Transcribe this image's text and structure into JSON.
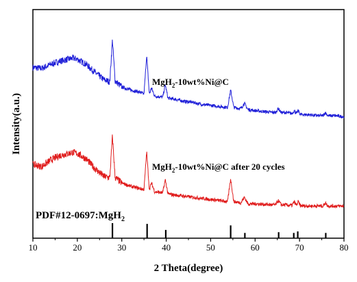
{
  "chart_data": {
    "type": "line",
    "title": "",
    "xlabel": "2 Theta(degree)",
    "ylabel": "Intensity(a.u.)",
    "xlim": [
      10,
      80
    ],
    "ylim": [
      0,
      100
    ],
    "x_ticks": [
      "10",
      "20",
      "30",
      "40",
      "50",
      "60",
      "70",
      "80"
    ],
    "y_ticks_shown": false,
    "grid": false,
    "legend": "none",
    "series": [
      {
        "color": "#1f1fd8",
        "annotation": {
          "prefix": "MgH",
          "sub": "2",
          "suffix": "-10wt%Ni@C"
        },
        "x": [
          10,
          12,
          14,
          16,
          18,
          19,
          20,
          22,
          24,
          26,
          27.3,
          27.9,
          28.5,
          30,
          32,
          34,
          35.0,
          35.6,
          36.2,
          36.7,
          37.4,
          39.2,
          39.8,
          40.4,
          42,
          44,
          46,
          48,
          50,
          52,
          53.8,
          54.5,
          55.2,
          56.8,
          57.6,
          58.4,
          60,
          62,
          64.6,
          65.2,
          65.9,
          67,
          68.3,
          68.8,
          69.3,
          69.7,
          70.2,
          72,
          74,
          75.3,
          75.8,
          76.4,
          78,
          80
        ],
        "y": [
          69,
          68,
          72,
          75,
          77,
          78,
          77,
          72,
          64,
          57,
          55,
          96,
          56,
          50,
          47,
          45,
          43,
          81,
          43,
          49,
          41,
          40,
          52,
          39,
          38,
          36,
          35,
          33,
          32,
          31,
          30,
          47,
          30,
          29,
          34,
          28,
          27,
          26,
          25,
          29,
          25,
          25,
          24,
          27,
          24,
          27,
          23,
          23,
          22,
          22,
          25,
          22,
          22,
          21
        ]
      },
      {
        "color": "#e01c1c",
        "annotation": {
          "prefix": "MgH",
          "sub": "2",
          "suffix": "-10wt%Ni@C after 20 cycles"
        },
        "x": [
          10,
          12,
          14,
          16,
          18,
          19,
          20,
          22,
          24,
          26,
          27.3,
          27.9,
          28.5,
          30,
          32,
          34,
          35.0,
          35.6,
          36.2,
          36.7,
          37.4,
          39.2,
          39.8,
          40.4,
          42,
          44,
          46,
          48,
          50,
          52,
          53.8,
          54.5,
          55.2,
          56.8,
          57.6,
          58.4,
          60,
          62,
          64.6,
          65.2,
          65.9,
          67,
          68.3,
          68.8,
          69.3,
          69.7,
          70.2,
          72,
          74,
          75.3,
          75.8,
          76.4,
          78,
          80
        ],
        "y": [
          38,
          36,
          42,
          46,
          48,
          49,
          48,
          43,
          34,
          27,
          26,
          64,
          26,
          21,
          18,
          16,
          15,
          50,
          15,
          21,
          13,
          12,
          24,
          11,
          10,
          9,
          8,
          7,
          6,
          5,
          4,
          25,
          4,
          3,
          8,
          2,
          2,
          1.5,
          1,
          5,
          1,
          1,
          0.5,
          4,
          0.5,
          4,
          0.2,
          0,
          0,
          0,
          3,
          0,
          0,
          0
        ]
      }
    ],
    "reference": {
      "label": {
        "prefix": "PDF#12-0697:MgH",
        "sub": "2"
      },
      "positions": [
        27.9,
        35.7,
        39.9,
        54.5,
        57.7,
        65.3,
        68.7,
        69.6,
        75.9
      ],
      "intensities": [
        100,
        95,
        55,
        85,
        35,
        40,
        35,
        45,
        35
      ]
    }
  }
}
